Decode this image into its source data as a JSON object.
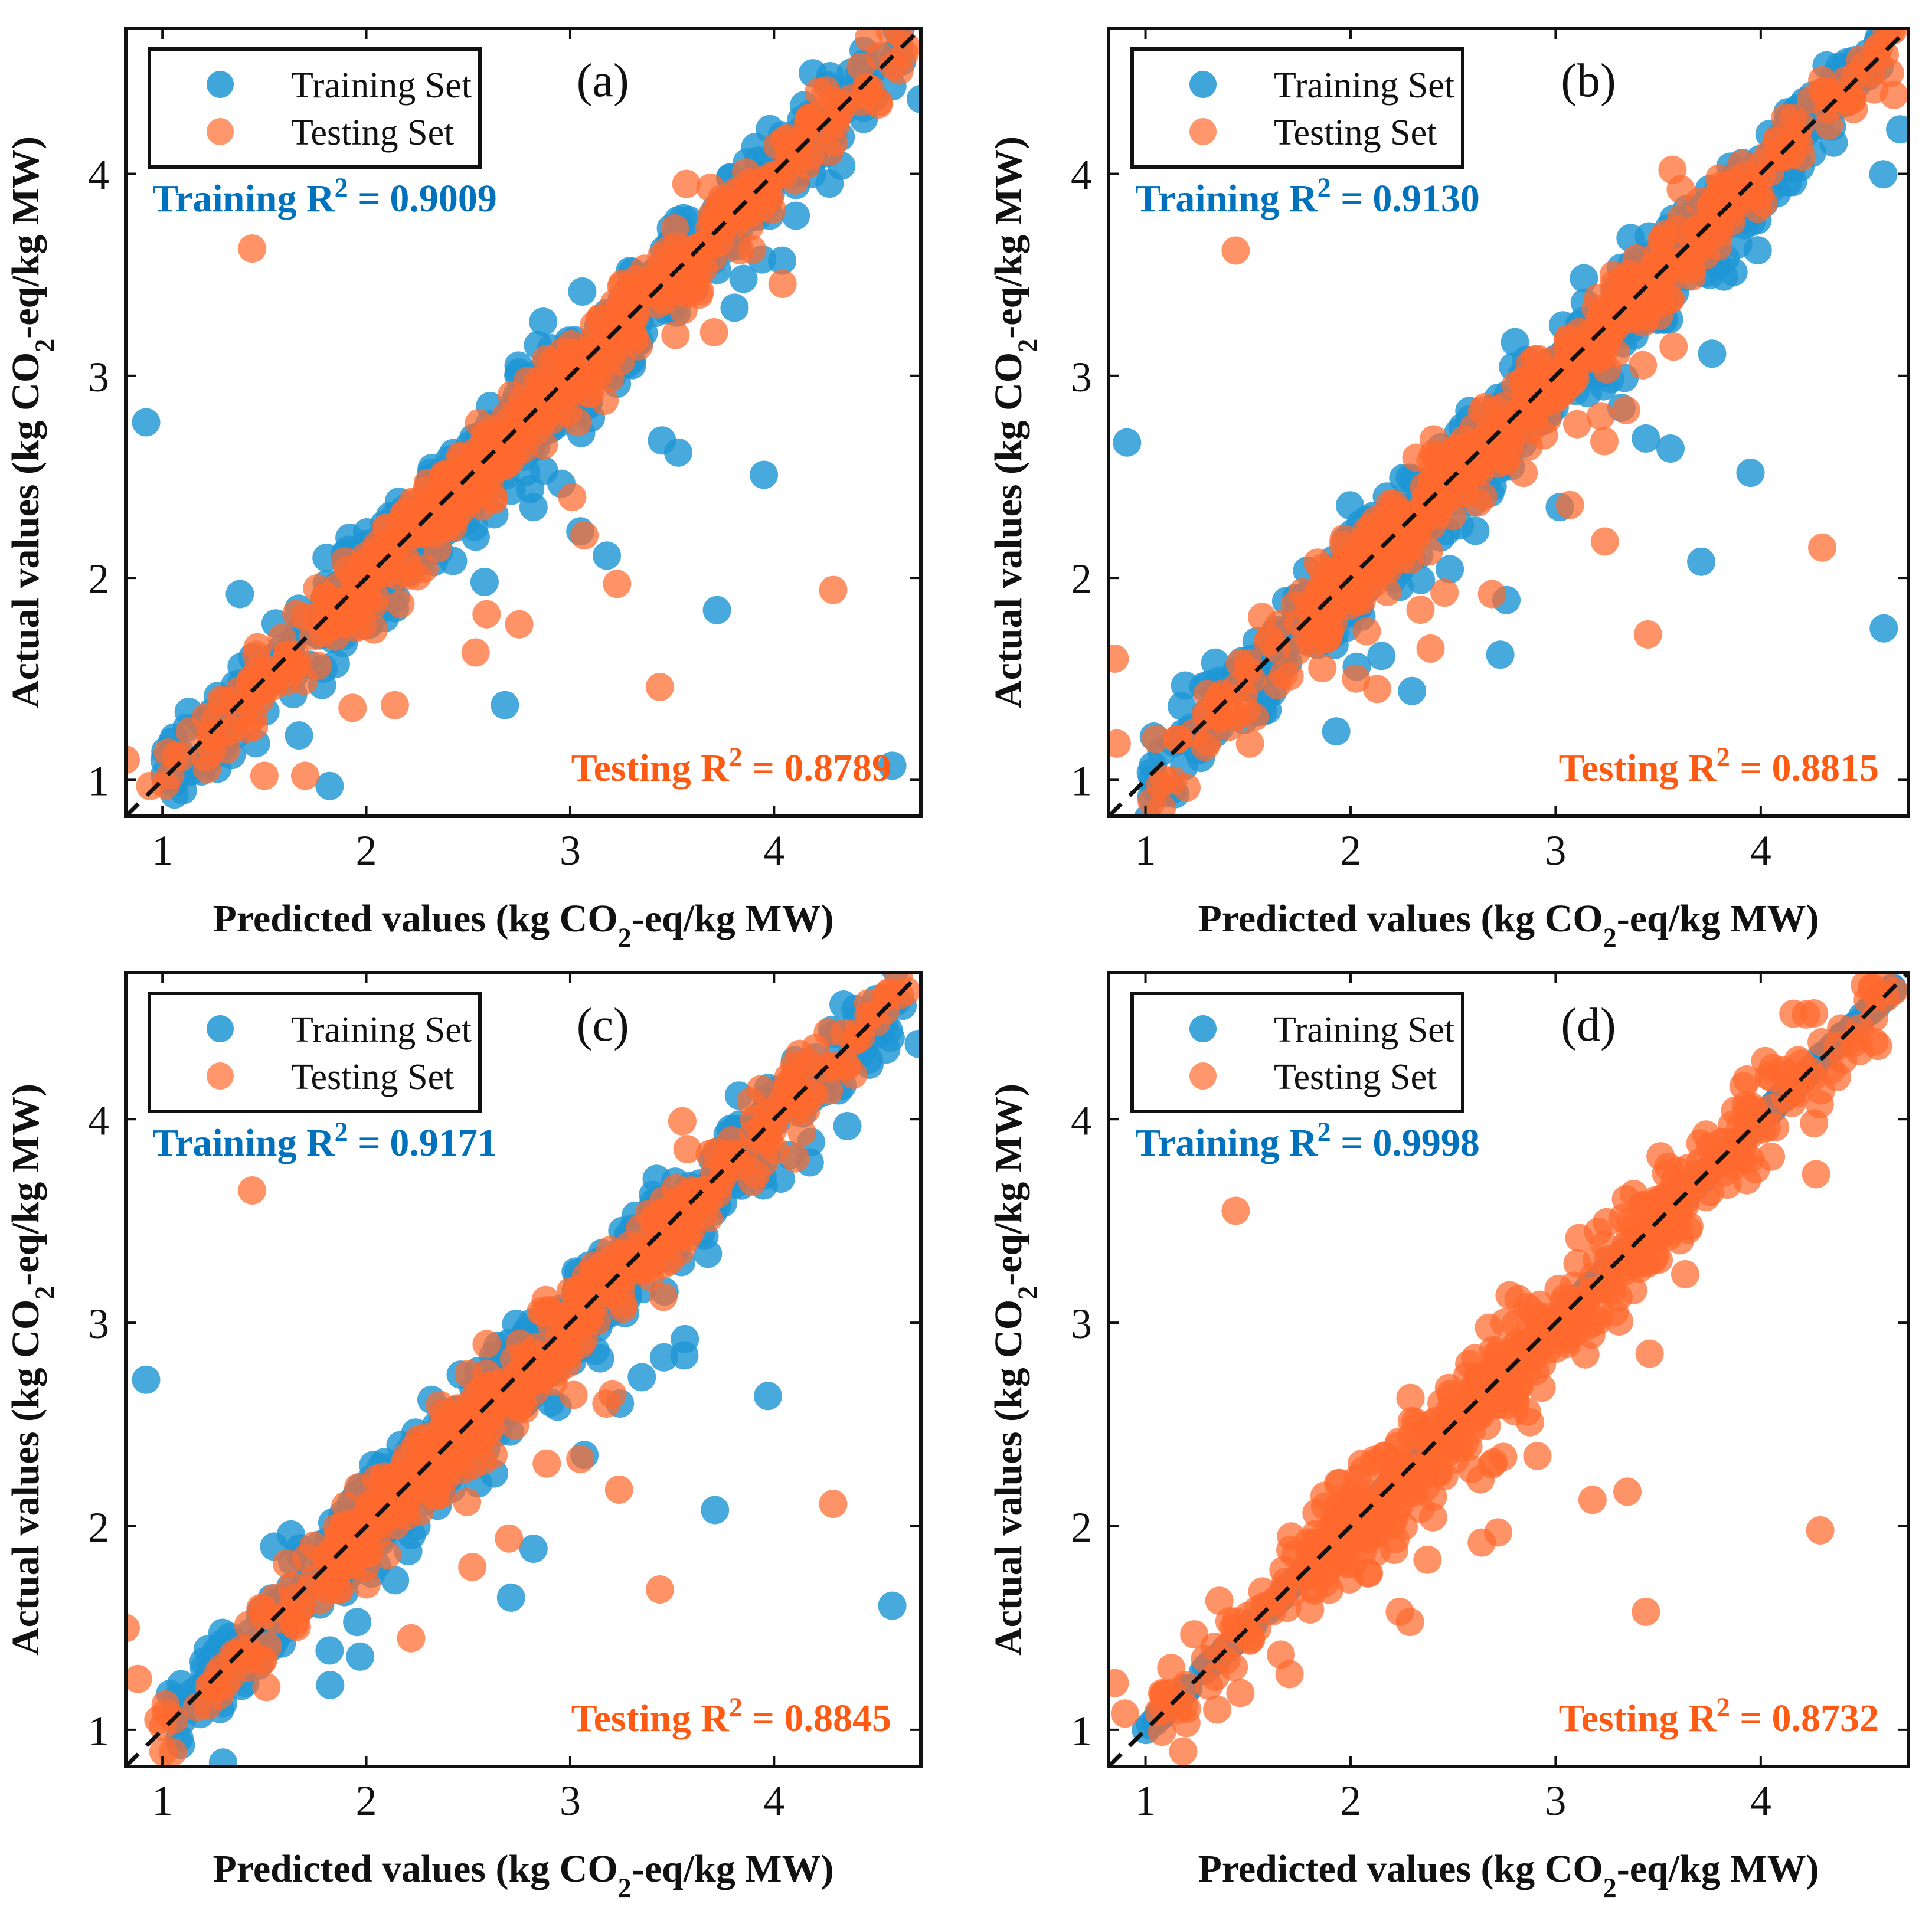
{
  "figure": {
    "x_axis_label": "Predicted values (kg CO2-eq/kg MW)",
    "y_axis_label": "Actual values (kg CO2-eq/kg MW)",
    "legend_training": "Training Set",
    "legend_testing": "Testing Set"
  },
  "colors": {
    "training": "#1f96d4",
    "testing": "#ff6a2e",
    "training_text": "#0072bd",
    "testing_text": "#ff5a14",
    "reference_line": "#111111"
  },
  "chart_data": [
    {
      "type": "scatter",
      "panel_label": "(a)",
      "xlabel": "Predicted values (kg CO2-eq/kg MW)",
      "ylabel": "Actual values (kg CO2-eq/kg MW)",
      "xlim": [
        0.82,
        4.72
      ],
      "ylim": [
        0.82,
        4.72
      ],
      "xticks": [
        1,
        2,
        3,
        4
      ],
      "yticks": [
        1,
        2,
        3,
        4
      ],
      "legend_position": "top-left",
      "training_r2_text": "Training R² = 0.9009",
      "testing_r2_text": "Testing R² = 0.8789",
      "training_r2": 0.9009,
      "testing_r2": 0.8789,
      "reference_line": {
        "style": "dashed",
        "equation": "y = x"
      },
      "series": [
        {
          "name": "Training Set",
          "color": "#1f96d4",
          "n_points": 680,
          "noise_sd": 0.12,
          "trend": "y ≈ x",
          "outliers": [
            [
              0.92,
              2.77
            ],
            [
              1.38,
              1.92
            ],
            [
              1.67,
              1.22
            ],
            [
              1.82,
              0.97
            ],
            [
              2.58,
              1.98
            ],
            [
              2.68,
              1.37
            ],
            [
              2.82,
              2.35
            ],
            [
              3.05,
              2.23
            ],
            [
              3.18,
              2.11
            ],
            [
              3.45,
              2.68
            ],
            [
              3.53,
              2.62
            ],
            [
              3.72,
              1.84
            ],
            [
              3.85,
              3.48
            ],
            [
              3.95,
              2.51
            ],
            [
              4.04,
              3.57
            ],
            [
              4.58,
              1.07
            ],
            [
              4.72,
              4.37
            ],
            [
              4.55,
              4.58
            ]
          ]
        },
        {
          "name": "Testing Set",
          "color": "#ff6a2e",
          "n_points": 520,
          "noise_sd": 0.1,
          "trend": "y ≈ x",
          "outliers": [
            [
              1.44,
              3.63
            ],
            [
              0.82,
              1.1
            ],
            [
              0.94,
              0.97
            ],
            [
              1.5,
              1.02
            ],
            [
              1.7,
              1.02
            ],
            [
              2.14,
              1.37
            ],
            [
              2.59,
              1.82
            ],
            [
              2.75,
              1.77
            ],
            [
              3.01,
              2.4
            ],
            [
              3.07,
              2.21
            ],
            [
              3.23,
              1.97
            ],
            [
              3.44,
              1.46
            ],
            [
              3.57,
              3.95
            ],
            [
              4.29,
              1.94
            ],
            [
              4.65,
              4.63
            ]
          ]
        }
      ]
    },
    {
      "type": "scatter",
      "panel_label": "(b)",
      "xlabel": "Predicted values (kg CO2-eq/kg MW)",
      "ylabel": "Actual values (kg CO2-eq/kg MW)",
      "xlim": [
        0.82,
        4.72
      ],
      "ylim": [
        0.82,
        4.72
      ],
      "xticks": [
        1,
        2,
        3,
        4
      ],
      "yticks": [
        1,
        2,
        3,
        4
      ],
      "legend_position": "top-left",
      "training_r2_text": "Training R² = 0.9130",
      "testing_r2_text": "Testing R² = 0.8815",
      "training_r2": 0.913,
      "testing_r2": 0.8815,
      "reference_line": {
        "style": "dashed",
        "equation": "y = x"
      },
      "series": [
        {
          "name": "Training Set",
          "color": "#1f96d4",
          "n_points": 680,
          "noise_sd": 0.11,
          "trend": "y ≈ x",
          "outliers": [
            [
              0.91,
              2.67
            ],
            [
              1.34,
              1.58
            ],
            [
              1.93,
              1.24
            ],
            [
              2.03,
              1.56
            ],
            [
              2.3,
              1.44
            ],
            [
              2.73,
              1.62
            ],
            [
              2.76,
              1.89
            ],
            [
              3.02,
              2.35
            ],
            [
              3.44,
              2.69
            ],
            [
              3.56,
              2.64
            ],
            [
              3.71,
              2.08
            ],
            [
              3.95,
              2.52
            ],
            [
              4.6,
              1.75
            ],
            [
              4.68,
              4.22
            ],
            [
              4.58,
              4.53
            ]
          ]
        },
        {
          "name": "Testing Set",
          "color": "#ff6a2e",
          "n_points": 520,
          "noise_sd": 0.1,
          "trend": "y ≈ x",
          "outliers": [
            [
              1.44,
              3.62
            ],
            [
              0.85,
              1.6
            ],
            [
              0.86,
              1.18
            ],
            [
              1.51,
              1.18
            ],
            [
              2.13,
              1.45
            ],
            [
              2.39,
              1.65
            ],
            [
              2.69,
              1.92
            ],
            [
              3.07,
              2.36
            ],
            [
              3.24,
              2.18
            ],
            [
              3.45,
              1.72
            ],
            [
              3.57,
              4.02
            ],
            [
              4.3,
              2.15
            ],
            [
              4.65,
              4.39
            ]
          ]
        }
      ]
    },
    {
      "type": "scatter",
      "panel_label": "(c)",
      "xlabel": "Predicted values (kg CO2-eq/kg MW)",
      "ylabel": "Actual values (kg CO2-eq/kg MW)",
      "xlim": [
        0.82,
        4.72
      ],
      "ylim": [
        0.82,
        4.72
      ],
      "xticks": [
        1,
        2,
        3,
        4
      ],
      "yticks": [
        1,
        2,
        3,
        4
      ],
      "legend_position": "top-left",
      "training_r2_text": "Training R² = 0.9171",
      "testing_r2_text": "Testing R² = 0.8845",
      "training_r2": 0.9171,
      "testing_r2": 0.8845,
      "reference_line": {
        "style": "dashed",
        "equation": "y = x"
      },
      "series": [
        {
          "name": "Training Set",
          "color": "#1f96d4",
          "n_points": 680,
          "noise_sd": 0.11,
          "trend": "y ≈ x",
          "outliers": [
            [
              0.92,
              2.72
            ],
            [
              1.82,
              1.39
            ],
            [
              1.97,
              1.36
            ],
            [
              2.71,
              1.65
            ],
            [
              2.82,
              1.89
            ],
            [
              3.07,
              2.35
            ],
            [
              3.46,
              2.83
            ],
            [
              3.56,
              2.84
            ],
            [
              3.71,
              2.08
            ],
            [
              3.97,
              2.64
            ],
            [
              4.58,
              1.61
            ],
            [
              4.71,
              4.37
            ],
            [
              4.55,
              4.58
            ]
          ]
        },
        {
          "name": "Testing Set",
          "color": "#ff6a2e",
          "n_points": 520,
          "noise_sd": 0.1,
          "trend": "y ≈ x",
          "outliers": [
            [
              1.44,
              3.65
            ],
            [
              0.82,
              1.5
            ],
            [
              0.88,
              1.25
            ],
            [
              0.98,
              1.05
            ],
            [
              1.51,
              1.21
            ],
            [
              2.22,
              1.45
            ],
            [
              2.52,
              1.8
            ],
            [
              2.7,
              1.94
            ],
            [
              3.05,
              2.33
            ],
            [
              3.24,
              2.18
            ],
            [
              3.44,
              1.69
            ],
            [
              3.55,
              3.99
            ],
            [
              4.29,
              2.11
            ],
            [
              4.65,
              4.63
            ]
          ]
        }
      ]
    },
    {
      "type": "scatter",
      "panel_label": "(d)",
      "xlabel": "Predicted values (kg CO2-eq/kg MW)",
      "ylabel": "Actual values (kg CO2-eq/kg MW)",
      "xlim": [
        0.82,
        4.72
      ],
      "ylim": [
        0.82,
        4.72
      ],
      "xticks": [
        1,
        2,
        3,
        4
      ],
      "yticks": [
        1,
        2,
        3,
        4
      ],
      "legend_position": "top-left",
      "training_r2_text": "Training R² = 0.9998",
      "testing_r2_text": "Testing R² = 0.8732",
      "training_r2": 0.9998,
      "testing_r2": 0.8732,
      "reference_line": {
        "style": "dashed",
        "equation": "y = x"
      },
      "series": [
        {
          "name": "Training Set",
          "color": "#1f96d4",
          "n_points": 700,
          "noise_sd": 0.006,
          "trend": "y ≈ x",
          "outliers": []
        },
        {
          "name": "Testing Set",
          "color": "#ff6a2e",
          "n_points": 520,
          "noise_sd": 0.13,
          "trend": "y ≈ x",
          "outliers": [
            [
              1.44,
              3.55
            ],
            [
              0.85,
              1.23
            ],
            [
              0.9,
              1.08
            ],
            [
              1.35,
              1.1
            ],
            [
              1.5,
              1.56
            ],
            [
              1.57,
              1.68
            ],
            [
              1.71,
              1.95
            ],
            [
              1.73,
              1.86
            ],
            [
              1.85,
              1.79
            ],
            [
              2.09,
              1.77
            ],
            [
              2.24,
              1.58
            ],
            [
              2.29,
              1.53
            ],
            [
              2.64,
              1.92
            ],
            [
              2.72,
              1.97
            ],
            [
              3.18,
              2.13
            ],
            [
              3.35,
              2.17
            ],
            [
              3.44,
              1.58
            ],
            [
              4.07,
              3.96
            ],
            [
              4.26,
              3.98
            ],
            [
              4.27,
              3.73
            ],
            [
              4.29,
              1.98
            ],
            [
              4.65,
              4.63
            ],
            [
              4.26,
              4.52
            ]
          ]
        }
      ]
    }
  ]
}
